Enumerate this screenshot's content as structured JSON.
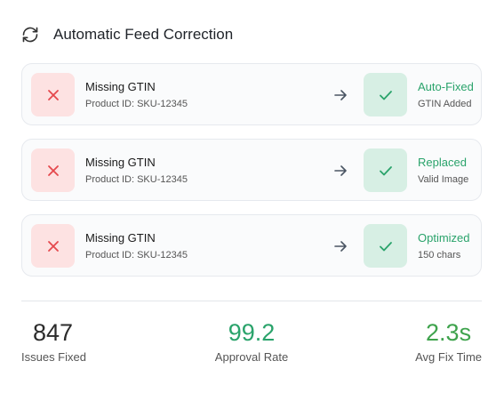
{
  "header": {
    "title": "Automatic Feed Correction",
    "icon": "refresh-icon"
  },
  "corrections": [
    {
      "issue": "Missing GTIN",
      "product": "Product ID: SKU-12345",
      "result": "Auto-Fixed",
      "detail": "GTIN Added"
    },
    {
      "issue": "Missing GTIN",
      "product": "Product ID: SKU-12345",
      "result": "Replaced",
      "detail": "Valid Image"
    },
    {
      "issue": "Missing GTIN",
      "product": "Product ID: SKU-12345",
      "result": "Optimized",
      "detail": "150 chars"
    }
  ],
  "stats": [
    {
      "value": "847",
      "label": "Issues Fixed",
      "color": "#2b2b2b"
    },
    {
      "value": "99.2",
      "label": "Approval Rate",
      "color": "#2aa36b"
    },
    {
      "value": "2.3s",
      "label": "Avg Fix Time",
      "color": "#3fa34d"
    }
  ],
  "colors": {
    "error": "#e5484d",
    "success": "#2aa36b",
    "error_bg": "#fde2e2",
    "success_bg": "#d7efe4"
  }
}
